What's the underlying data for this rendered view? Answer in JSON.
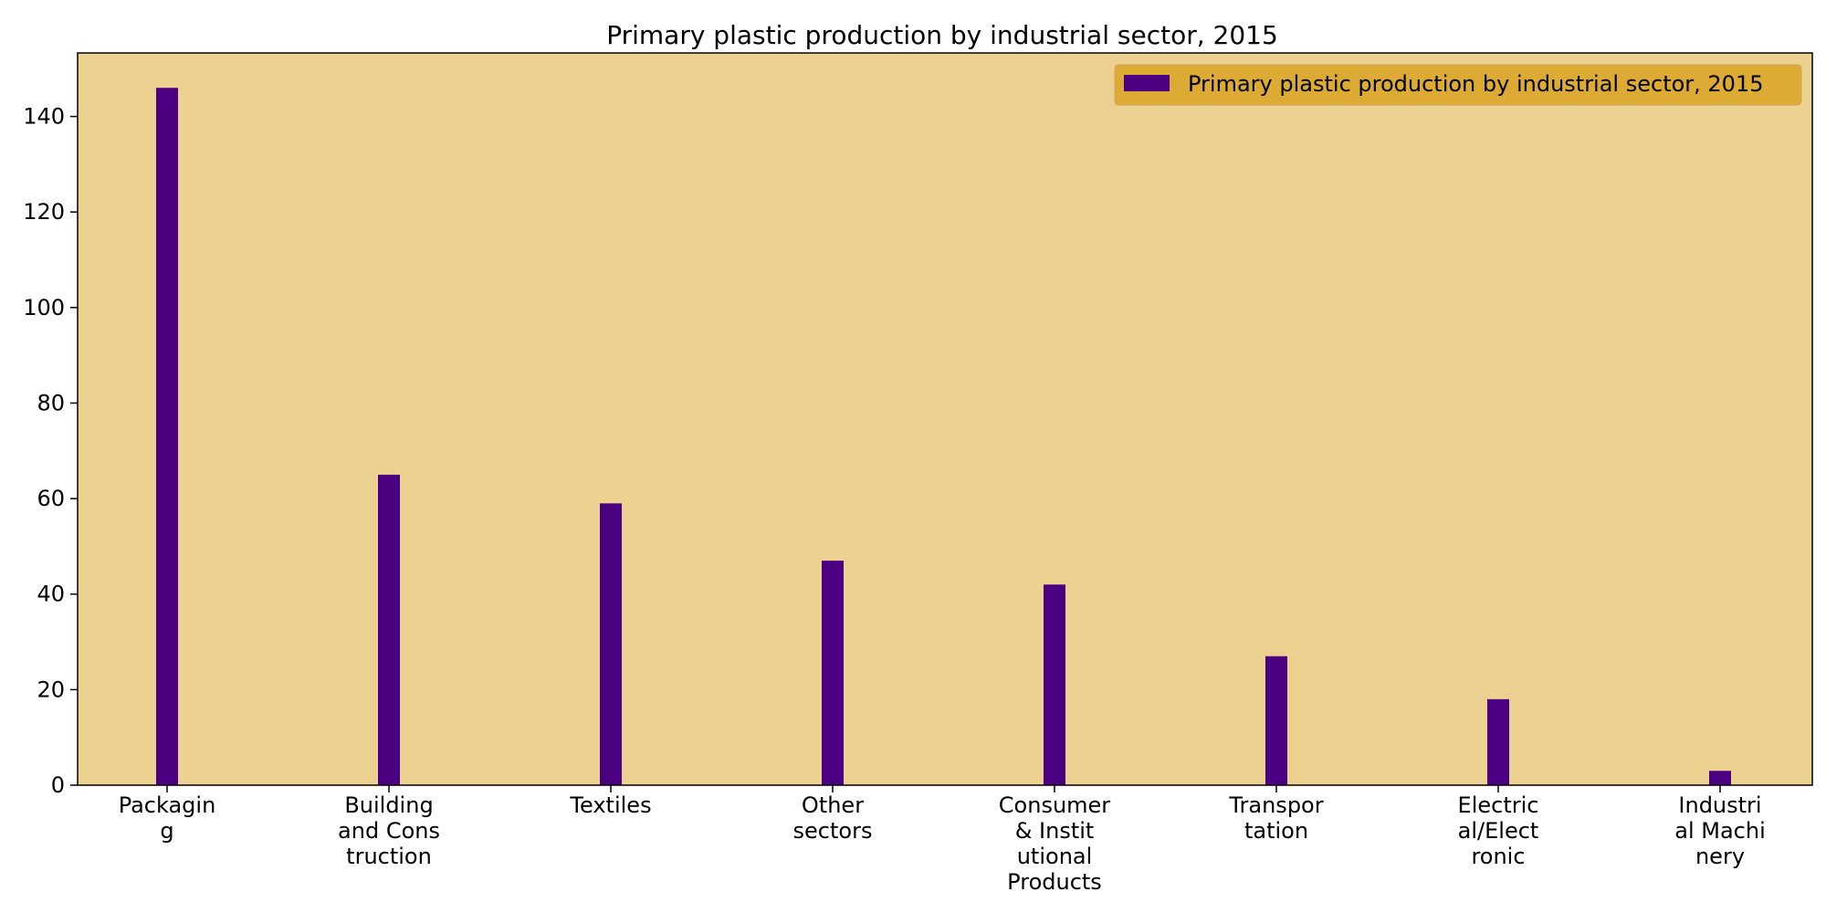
{
  "chart_data": {
    "type": "bar",
    "title": "Primary plastic production by industrial sector, 2015",
    "xlabel": "",
    "ylabel": "",
    "categories": [
      [
        "Packagin",
        "g"
      ],
      [
        "Building",
        "and Cons",
        "truction"
      ],
      [
        "Textiles"
      ],
      [
        "Other",
        "sectors"
      ],
      [
        "Consumer",
        "& Instit",
        "utional",
        "Products"
      ],
      [
        "Transpor",
        "tation"
      ],
      [
        "Electric",
        "al/Elect",
        "ronic"
      ],
      [
        "Industri",
        "al Machi",
        "nery"
      ]
    ],
    "series": [
      {
        "name": "Primary plastic production by industrial sector, 2015",
        "values": [
          146,
          65,
          59,
          47,
          42,
          27,
          18,
          3
        ]
      }
    ],
    "ylim": [
      0,
      153.3
    ],
    "yticks": [
      0,
      20,
      40,
      60,
      80,
      100,
      120,
      140
    ],
    "grid": false,
    "legend_position": "top-right",
    "colors": {
      "bar": "#4b0082",
      "plot_background": "#edd190",
      "legend_background": "#ddaa33",
      "legend_border": "#c9a55a",
      "axis": "#000000"
    }
  }
}
